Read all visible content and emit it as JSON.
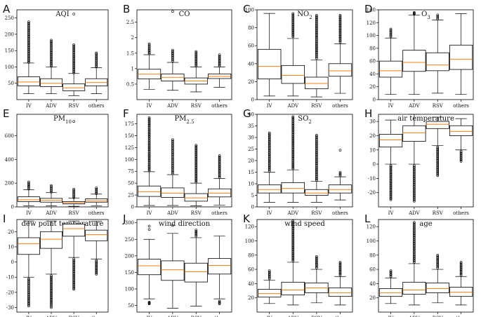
{
  "chart_data": [
    {
      "id": "A",
      "title": "AQI",
      "type": "box",
      "categories": [
        "IV",
        "ADV",
        "RSV",
        "others"
      ],
      "ylim": [
        0,
        275
      ],
      "yticks": [
        50,
        100,
        150,
        200,
        250
      ],
      "boxes": [
        {
          "min": 18,
          "q1": 42,
          "med": 54,
          "q3": 70,
          "max": 112,
          "out_from": 114,
          "out_to": 238
        },
        {
          "min": 18,
          "q1": 40,
          "med": 50,
          "q3": 64,
          "max": 100,
          "out_from": 102,
          "out_to": 182
        },
        {
          "min": 12,
          "q1": 27,
          "med": 36,
          "q3": 48,
          "max": 80,
          "out_from": 82,
          "out_to": 168,
          "extra": [
            262
          ]
        },
        {
          "min": 18,
          "q1": 42,
          "med": 52,
          "q3": 64,
          "max": 98,
          "out_from": 100,
          "out_to": 143
        }
      ]
    },
    {
      "id": "B",
      "title": "CO",
      "type": "box",
      "categories": [
        "IV",
        "ADV",
        "RSV",
        "others"
      ],
      "ylim": [
        0,
        2.9
      ],
      "yticks": [
        0.5,
        1.0,
        1.5,
        2.0,
        2.5
      ],
      "boxes": [
        {
          "min": 0.33,
          "q1": 0.67,
          "med": 0.82,
          "q3": 0.98,
          "max": 1.45,
          "out_from": 1.48,
          "out_to": 1.8
        },
        {
          "min": 0.3,
          "q1": 0.6,
          "med": 0.72,
          "q3": 0.83,
          "max": 1.2,
          "out_from": 1.25,
          "out_to": 1.6,
          "extra": [
            2.85
          ]
        },
        {
          "min": 0.25,
          "q1": 0.5,
          "med": 0.6,
          "q3": 0.7,
          "max": 1.05,
          "out_from": 1.08,
          "out_to": 1.55
        },
        {
          "min": 0.4,
          "q1": 0.68,
          "med": 0.75,
          "q3": 0.83,
          "max": 1.05,
          "out_from": 1.08,
          "out_to": 1.45
        }
      ]
    },
    {
      "id": "C",
      "title": "NO2",
      "type": "box",
      "categories": [
        "IV",
        "ADV",
        "RSV",
        "others"
      ],
      "ylim": [
        0,
        100
      ],
      "yticks": [
        0,
        20,
        40,
        60,
        80,
        100
      ],
      "boxes": [
        {
          "min": 4,
          "q1": 23,
          "med": 37,
          "q3": 56,
          "max": 96,
          "out_from": 0,
          "out_to": 0
        },
        {
          "min": 4,
          "q1": 18,
          "med": 27,
          "q3": 38,
          "max": 68,
          "out_from": 70,
          "out_to": 96
        },
        {
          "min": 3,
          "q1": 12,
          "med": 18,
          "q3": 25,
          "max": 44,
          "out_from": 46,
          "out_to": 94
        },
        {
          "min": 7,
          "q1": 26,
          "med": 32,
          "q3": 40,
          "max": 62,
          "out_from": 64,
          "out_to": 94
        }
      ]
    },
    {
      "id": "D",
      "title": "O3",
      "type": "box",
      "categories": [
        "IV",
        "ADV",
        "RSV",
        "others"
      ],
      "ylim": [
        0,
        140
      ],
      "yticks": [
        0,
        20,
        40,
        60,
        80,
        100,
        120,
        140
      ],
      "boxes": [
        {
          "min": 8,
          "q1": 35,
          "med": 45,
          "q3": 60,
          "max": 96,
          "out_from": 98,
          "out_to": 110
        },
        {
          "min": 8,
          "q1": 44,
          "med": 58,
          "q3": 77,
          "max": 132,
          "out_from": 133,
          "out_to": 136
        },
        {
          "min": 10,
          "q1": 45,
          "med": 54,
          "q3": 73,
          "max": 124,
          "out_from": 126,
          "out_to": 132
        },
        {
          "min": 8,
          "q1": 47,
          "med": 63,
          "q3": 85,
          "max": 134,
          "out_from": 0,
          "out_to": 0
        }
      ]
    },
    {
      "id": "E",
      "title": "PM10",
      "type": "box",
      "categories": [
        "IV",
        "ADV",
        "RSV",
        "others"
      ],
      "ylim": [
        0,
        780
      ],
      "yticks": [
        0,
        200,
        400,
        600
      ],
      "boxes": [
        {
          "min": 10,
          "q1": 45,
          "med": 60,
          "q3": 85,
          "max": 145,
          "out_from": 150,
          "out_to": 210
        },
        {
          "min": 8,
          "q1": 40,
          "med": 55,
          "q3": 72,
          "max": 120,
          "out_from": 125,
          "out_to": 180
        },
        {
          "min": 5,
          "q1": 25,
          "med": 35,
          "q3": 45,
          "max": 75,
          "out_from": 78,
          "out_to": 150,
          "extra": [
            720
          ]
        },
        {
          "min": 10,
          "q1": 40,
          "med": 52,
          "q3": 68,
          "max": 108,
          "out_from": 112,
          "out_to": 160
        }
      ]
    },
    {
      "id": "F",
      "title": "PM2.5",
      "type": "box",
      "categories": [
        "IV",
        "ADV",
        "RSV",
        "others"
      ],
      "ylim": [
        0,
        195
      ],
      "yticks": [
        0,
        25,
        50,
        75,
        100,
        125,
        150,
        175
      ],
      "boxes": [
        {
          "min": 3,
          "q1": 22,
          "med": 32,
          "q3": 44,
          "max": 74,
          "out_from": 76,
          "out_to": 188
        },
        {
          "min": 3,
          "q1": 20,
          "med": 29,
          "q3": 40,
          "max": 68,
          "out_from": 70,
          "out_to": 142
        },
        {
          "min": 2,
          "q1": 12,
          "med": 19,
          "q3": 28,
          "max": 50,
          "out_from": 52,
          "out_to": 130
        },
        {
          "min": 4,
          "q1": 21,
          "med": 29,
          "q3": 38,
          "max": 60,
          "out_from": 62,
          "out_to": 108
        }
      ]
    },
    {
      "id": "G",
      "title": "SO2",
      "type": "box",
      "categories": [
        "IV",
        "ADV",
        "RSV",
        "others"
      ],
      "ylim": [
        0,
        40
      ],
      "yticks": [
        0,
        5,
        10,
        15,
        20,
        25,
        30,
        35,
        40
      ],
      "boxes": [
        {
          "min": 2,
          "q1": 6,
          "med": 7.5,
          "q3": 9.5,
          "max": 15,
          "out_from": 15.5,
          "out_to": 32
        },
        {
          "min": 2,
          "q1": 6,
          "med": 8,
          "q3": 10.5,
          "max": 16,
          "out_from": 16.5,
          "out_to": 39
        },
        {
          "min": 2,
          "q1": 5,
          "med": 6,
          "q3": 7.5,
          "max": 11,
          "out_from": 11.5,
          "out_to": 31
        },
        {
          "min": 3,
          "q1": 6,
          "med": 7.5,
          "q3": 9.5,
          "max": 13,
          "out_from": 13.5,
          "out_to": 15,
          "extra": [
            24.5
          ]
        }
      ]
    },
    {
      "id": "H",
      "title": "air temperature",
      "type": "box",
      "categories": [
        "IV",
        "ADV",
        "RSV",
        "others"
      ],
      "ylim": [
        -30,
        35
      ],
      "yticks": [
        -20,
        -10,
        0,
        10,
        20,
        30
      ],
      "boxes": [
        {
          "min": 0,
          "q1": 12,
          "med": 17,
          "q3": 21,
          "max": 31,
          "out_from": -1,
          "out_to": -25
        },
        {
          "min": 0,
          "q1": 16,
          "med": 22,
          "q3": 27,
          "max": 35,
          "out_from": -1,
          "out_to": -26
        },
        {
          "min": 13,
          "q1": 25,
          "med": 28,
          "q3": 30,
          "max": 33,
          "out_from": 12,
          "out_to": -8
        },
        {
          "min": 10,
          "q1": 20,
          "med": 23,
          "q3": 27,
          "max": 32,
          "out_from": 9,
          "out_to": 2
        }
      ]
    },
    {
      "id": "I",
      "title": "dew point temperature",
      "type": "box",
      "categories": [
        "IV",
        "ADV",
        "RSV",
        "others"
      ],
      "ylim": [
        -33,
        28
      ],
      "yticks": [
        -30,
        -20,
        -10,
        0,
        10,
        20
      ],
      "boxes": [
        {
          "min": -10,
          "q1": 5,
          "med": 12,
          "q3": 16,
          "max": 27,
          "out_from": -11,
          "out_to": -29
        },
        {
          "min": -8,
          "q1": 9,
          "med": 15,
          "q3": 20,
          "max": 27,
          "out_from": -9,
          "out_to": -30
        },
        {
          "min": 3,
          "q1": 17,
          "med": 22,
          "q3": 25,
          "max": 27,
          "out_from": 2,
          "out_to": -18
        },
        {
          "min": 2,
          "q1": 14,
          "med": 18,
          "q3": 21,
          "max": 27,
          "out_from": 1,
          "out_to": -8
        }
      ]
    },
    {
      "id": "J",
      "title": "wind direction",
      "type": "box",
      "categories": [
        "IV",
        "ADV",
        "RSV",
        "others"
      ],
      "ylim": [
        30,
        310
      ],
      "yticks": [
        50,
        100,
        150,
        200,
        250,
        300
      ],
      "boxes": [
        {
          "min": 70,
          "q1": 143,
          "med": 170,
          "q3": 190,
          "max": 250,
          "out_from": 60,
          "out_to": 55,
          "extra": [
            280,
            290
          ]
        },
        {
          "min": 42,
          "q1": 126,
          "med": 158,
          "q3": 185,
          "max": 268,
          "out_from": 0,
          "out_to": 0,
          "extra": [
            292
          ]
        },
        {
          "min": 48,
          "q1": 121,
          "med": 152,
          "q3": 178,
          "max": 255,
          "out_from": 260,
          "out_to": 278
        },
        {
          "min": 70,
          "q1": 145,
          "med": 171,
          "q3": 192,
          "max": 260,
          "out_from": 63,
          "out_to": 55
        }
      ]
    },
    {
      "id": "K",
      "title": "wind speed",
      "type": "box",
      "categories": [
        "IV",
        "ADV",
        "RSV",
        "others"
      ],
      "ylim": [
        0,
        130
      ],
      "yticks": [
        20,
        40,
        60,
        80,
        100,
        120
      ],
      "boxes": [
        {
          "min": 12,
          "q1": 21,
          "med": 26,
          "q3": 32,
          "max": 45,
          "out_from": 47,
          "out_to": 58
        },
        {
          "min": 10,
          "q1": 24,
          "med": 31,
          "q3": 42,
          "max": 70,
          "out_from": 72,
          "out_to": 128
        },
        {
          "min": 13,
          "q1": 27,
          "med": 34,
          "q3": 41,
          "max": 60,
          "out_from": 62,
          "out_to": 78
        },
        {
          "min": 10,
          "q1": 22,
          "med": 27,
          "q3": 34,
          "max": 50,
          "out_from": 52,
          "out_to": 70
        }
      ]
    },
    {
      "id": "L",
      "title": "age",
      "type": "box",
      "categories": [
        "IV",
        "ADV",
        "RSV",
        "others"
      ],
      "ylim": [
        0,
        130
      ],
      "yticks": [
        20,
        40,
        60,
        80,
        100,
        120
      ],
      "boxes": [
        {
          "min": 12,
          "q1": 22,
          "med": 27,
          "q3": 33,
          "max": 48,
          "out_from": 50,
          "out_to": 58
        },
        {
          "min": 10,
          "q1": 25,
          "med": 31,
          "q3": 42,
          "max": 68,
          "out_from": 70,
          "out_to": 126
        },
        {
          "min": 13,
          "q1": 27,
          "med": 33,
          "q3": 41,
          "max": 60,
          "out_from": 62,
          "out_to": 80
        },
        {
          "min": 10,
          "q1": 22,
          "med": 28,
          "q3": 35,
          "max": 50,
          "out_from": 52,
          "out_to": 70
        }
      ]
    }
  ],
  "colors": {
    "median": "#ff7f0e",
    "box": "#000000"
  }
}
